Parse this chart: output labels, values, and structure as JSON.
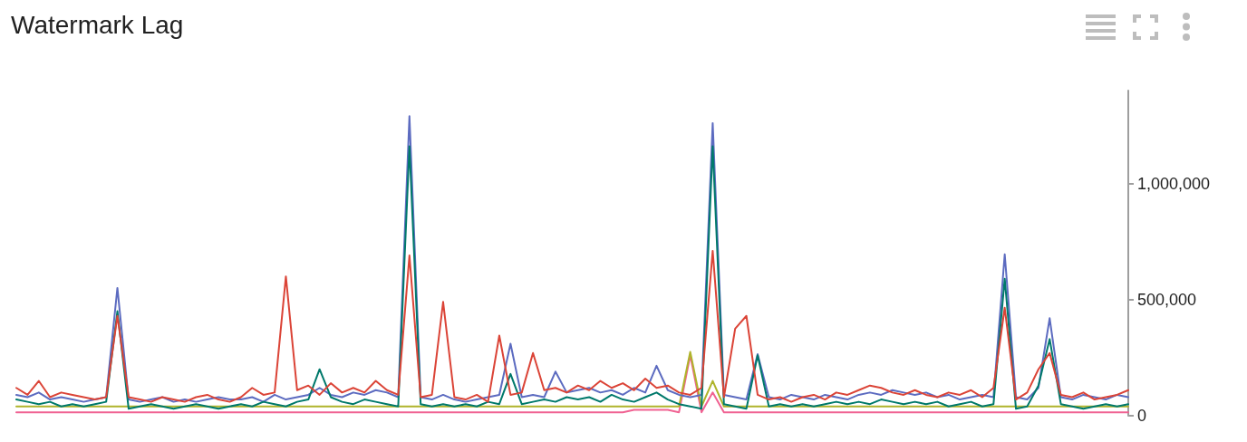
{
  "chart_data": {
    "type": "line",
    "title": "Watermark Lag",
    "categories": [
      null,
      null,
      null,
      null,
      null,
      null,
      null,
      null,
      null,
      null,
      null,
      null,
      null,
      null,
      null,
      null,
      null,
      null,
      null,
      null,
      null,
      null,
      null,
      null,
      null,
      null,
      null,
      null,
      null,
      null,
      null,
      null,
      null,
      null,
      null,
      null,
      null,
      null,
      null,
      null,
      null,
      null,
      null,
      null,
      null,
      null,
      null,
      null,
      null,
      null,
      null,
      null,
      null,
      null,
      null,
      null,
      null,
      null,
      null,
      null,
      null,
      null,
      null,
      null,
      null,
      null,
      null,
      null,
      null,
      null,
      null,
      null,
      null,
      null,
      null,
      null,
      null,
      null,
      null,
      null,
      null,
      null,
      null,
      null,
      null,
      null,
      null,
      null,
      null,
      null,
      null,
      null,
      null,
      null,
      null,
      null,
      null,
      null,
      null,
      null
    ],
    "ylim": [
      0,
      1400000
    ],
    "yticks": [
      0,
      {
        "value": 500000,
        "label": "500,000"
      },
      {
        "value": 1000000,
        "label": "1,000,000"
      }
    ],
    "grid": false,
    "marker": "none",
    "line_style": "solid",
    "tick_labels": "y",
    "series": [
      {
        "color": "#f06292",
        "values": [
          15000,
          15000,
          15000,
          15000,
          15000,
          15000,
          15000,
          15000,
          15000,
          15000,
          15000,
          15000,
          15000,
          15000,
          15000,
          15000,
          15000,
          15000,
          15000,
          15000,
          15000,
          15000,
          15000,
          15000,
          15000,
          15000,
          15000,
          15000,
          15000,
          15000,
          15000,
          15000,
          15000,
          15000,
          15000,
          15000,
          15000,
          15000,
          15000,
          15000,
          15000,
          15000,
          15000,
          15000,
          15000,
          15000,
          15000,
          15000,
          15000,
          15000,
          15000,
          15000,
          15000,
          15000,
          15000,
          25000,
          25000,
          25000,
          25000,
          15000,
          260000,
          15000,
          100000,
          15000,
          15000,
          15000,
          15000,
          15000,
          15000,
          15000,
          15000,
          15000,
          15000,
          15000,
          15000,
          15000,
          15000,
          15000,
          15000,
          15000,
          15000,
          15000,
          15000,
          15000,
          15000,
          15000,
          15000,
          15000,
          15000,
          15000,
          15000,
          15000,
          15000,
          15000,
          15000,
          15000,
          15000,
          15000,
          15000,
          15000
        ]
      },
      {
        "color": "#afb42b",
        "values": [
          40000,
          40000,
          40000,
          40000,
          40000,
          40000,
          40000,
          40000,
          40000,
          40000,
          40000,
          40000,
          40000,
          40000,
          40000,
          40000,
          40000,
          40000,
          40000,
          40000,
          40000,
          40000,
          40000,
          40000,
          40000,
          40000,
          40000,
          40000,
          40000,
          40000,
          40000,
          40000,
          40000,
          40000,
          40000,
          40000,
          40000,
          40000,
          40000,
          40000,
          40000,
          40000,
          40000,
          40000,
          40000,
          40000,
          40000,
          40000,
          40000,
          40000,
          40000,
          40000,
          40000,
          40000,
          40000,
          40000,
          40000,
          40000,
          40000,
          40000,
          275000,
          40000,
          150000,
          40000,
          40000,
          40000,
          40000,
          40000,
          40000,
          40000,
          40000,
          40000,
          40000,
          40000,
          40000,
          40000,
          40000,
          40000,
          40000,
          40000,
          40000,
          40000,
          40000,
          40000,
          40000,
          40000,
          40000,
          40000,
          40000,
          40000,
          40000,
          40000,
          40000,
          40000,
          40000,
          40000,
          40000,
          40000,
          40000,
          40000
        ]
      },
      {
        "color": "#5c6bc0",
        "values": [
          90000,
          80000,
          100000,
          70000,
          80000,
          70000,
          60000,
          70000,
          80000,
          550000,
          70000,
          60000,
          70000,
          80000,
          60000,
          70000,
          60000,
          70000,
          80000,
          70000,
          70000,
          80000,
          60000,
          90000,
          70000,
          80000,
          90000,
          120000,
          90000,
          80000,
          100000,
          90000,
          110000,
          100000,
          80000,
          1290000,
          80000,
          70000,
          90000,
          70000,
          60000,
          70000,
          80000,
          90000,
          310000,
          80000,
          90000,
          80000,
          190000,
          100000,
          110000,
          120000,
          100000,
          110000,
          90000,
          120000,
          100000,
          215000,
          110000,
          90000,
          80000,
          90000,
          1260000,
          90000,
          80000,
          70000,
          265000,
          80000,
          70000,
          90000,
          80000,
          70000,
          90000,
          80000,
          70000,
          90000,
          100000,
          90000,
          110000,
          100000,
          90000,
          100000,
          80000,
          90000,
          70000,
          80000,
          90000,
          80000,
          695000,
          80000,
          70000,
          120000,
          420000,
          80000,
          70000,
          90000,
          80000,
          70000,
          90000,
          80000
        ]
      },
      {
        "color": "#00796b",
        "values": [
          70000,
          60000,
          50000,
          60000,
          40000,
          50000,
          40000,
          50000,
          60000,
          450000,
          30000,
          40000,
          50000,
          40000,
          30000,
          40000,
          50000,
          40000,
          30000,
          40000,
          50000,
          40000,
          60000,
          50000,
          40000,
          60000,
          70000,
          200000,
          80000,
          60000,
          50000,
          70000,
          60000,
          50000,
          40000,
          1160000,
          50000,
          40000,
          50000,
          40000,
          50000,
          40000,
          60000,
          50000,
          180000,
          50000,
          60000,
          70000,
          60000,
          80000,
          70000,
          80000,
          60000,
          90000,
          70000,
          60000,
          80000,
          100000,
          70000,
          50000,
          40000,
          30000,
          1160000,
          50000,
          40000,
          30000,
          260000,
          40000,
          50000,
          40000,
          50000,
          40000,
          50000,
          60000,
          50000,
          60000,
          50000,
          70000,
          60000,
          50000,
          60000,
          50000,
          60000,
          40000,
          50000,
          60000,
          40000,
          50000,
          590000,
          30000,
          40000,
          130000,
          330000,
          50000,
          40000,
          30000,
          40000,
          50000,
          40000,
          50000
        ]
      },
      {
        "color": "#db4437",
        "values": [
          120000,
          90000,
          150000,
          80000,
          100000,
          90000,
          80000,
          70000,
          80000,
          430000,
          80000,
          70000,
          60000,
          80000,
          70000,
          60000,
          80000,
          90000,
          70000,
          60000,
          80000,
          120000,
          90000,
          100000,
          600000,
          110000,
          130000,
          90000,
          140000,
          100000,
          120000,
          100000,
          150000,
          110000,
          90000,
          690000,
          80000,
          90000,
          490000,
          80000,
          70000,
          90000,
          60000,
          345000,
          90000,
          100000,
          270000,
          110000,
          120000,
          100000,
          130000,
          110000,
          150000,
          120000,
          140000,
          110000,
          160000,
          120000,
          130000,
          100000,
          90000,
          120000,
          710000,
          80000,
          375000,
          430000,
          90000,
          70000,
          80000,
          60000,
          80000,
          90000,
          70000,
          100000,
          90000,
          110000,
          130000,
          120000,
          100000,
          90000,
          110000,
          90000,
          80000,
          100000,
          90000,
          110000,
          80000,
          120000,
          465000,
          70000,
          100000,
          200000,
          270000,
          90000,
          80000,
          100000,
          70000,
          80000,
          90000,
          110000
        ]
      }
    ]
  }
}
